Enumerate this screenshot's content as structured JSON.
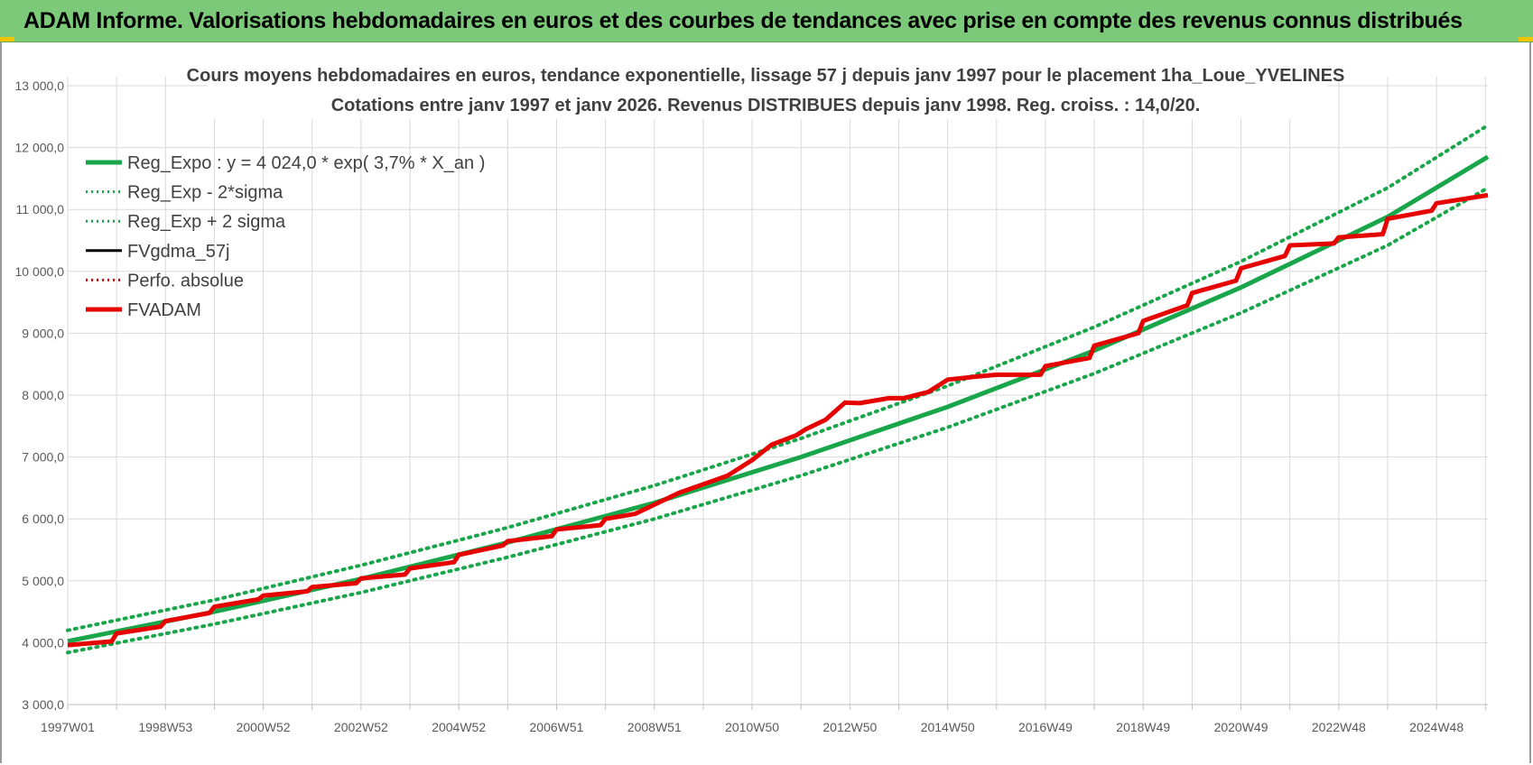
{
  "header": {
    "title": "ADAM Informe. Valorisations hebdomadaires en euros et des courbes de tendances avec prise en compte des revenus connus distribués",
    "background": "#7dc97a"
  },
  "chart_data": {
    "type": "line",
    "title_line1": "Cours moyens hebdomadaires en euros, tendance exponentielle, lissage 57 j depuis janv 1997  pour le  placement 1ha_Loue_YVELINES",
    "title_line2": "Cotations entre janv 1997 et janv 2026. Revenus DISTRIBUES depuis janv 1998.  Reg. croiss. : 14,0/20.",
    "ylim": [
      3000,
      13000
    ],
    "xlim": [
      1997.0,
      2026.05
    ],
    "y_ticks": [
      "3 000,0",
      "4 000,0",
      "5 000,0",
      "6 000,0",
      "7 000,0",
      "8 000,0",
      "9 000,0",
      "10 000,0",
      "11 000,0",
      "12 000,0",
      "13 000,0"
    ],
    "x_ticks": [
      "1997W01",
      "1998W53",
      "2000W52",
      "2002W52",
      "2004W52",
      "2006W51",
      "2008W51",
      "2010W50",
      "2012W50",
      "2014W50",
      "2016W49",
      "2018W49",
      "2020W49",
      "2022W48",
      "2024W48"
    ],
    "legend": [
      {
        "label": "Reg_Expo : y = 4 024,0 * exp( 3,7% *  X_an )",
        "color": "#19a64b",
        "style": "solid"
      },
      {
        "label": "Reg_Exp - 2*sigma",
        "color": "#19a64b",
        "style": "dotted"
      },
      {
        "label": "Reg_Exp + 2 sigma",
        "color": "#19a64b",
        "style": "dotted"
      },
      {
        "label": "FVgdma_57j",
        "color": "#000000",
        "style": "solid"
      },
      {
        "label": "Perfo. absolue",
        "color": "#e00000",
        "style": "dotted"
      },
      {
        "label": "FVADAM",
        "color": "#e60000",
        "style": "solid"
      }
    ],
    "series": [
      {
        "name": "Reg_Expo",
        "x": [
          1997.0,
          2000.0,
          2003.0,
          2006.0,
          2009.0,
          2012.0,
          2015.0,
          2018.0,
          2021.0,
          2024.0,
          2026.05
        ],
        "values": [
          4024,
          4500,
          5030,
          5620,
          6260,
          7000,
          7810,
          8720,
          9740,
          10880,
          11850
        ]
      },
      {
        "name": "Reg_Exp - 2*sigma",
        "x": [
          1997.0,
          2000.0,
          2003.0,
          2006.0,
          2009.0,
          2012.0,
          2015.0,
          2018.0,
          2021.0,
          2024.0,
          2026.05
        ],
        "values": [
          3840,
          4300,
          4810,
          5380,
          6000,
          6700,
          7480,
          8350,
          9330,
          10420,
          11350
        ]
      },
      {
        "name": "Reg_Exp + 2 sigma",
        "x": [
          1997.0,
          2000.0,
          2003.0,
          2006.0,
          2009.0,
          2012.0,
          2015.0,
          2018.0,
          2021.0,
          2024.0,
          2026.05
        ],
        "values": [
          4200,
          4690,
          5250,
          5860,
          6540,
          7300,
          8150,
          9100,
          10160,
          11350,
          12360
        ]
      },
      {
        "name": "FVADAM",
        "x": [
          1997.0,
          1997.9,
          1998.0,
          1998.9,
          1999.0,
          1999.9,
          2000.0,
          2000.9,
          2001.0,
          2001.9,
          2002.0,
          2002.9,
          2003.0,
          2003.9,
          2004.0,
          2004.9,
          2005.0,
          2005.9,
          2006.0,
          2006.9,
          2007.0,
          2007.9,
          2008.0,
          2008.6,
          2009.0,
          2009.5,
          2010.0,
          2010.5,
          2011.0,
          2011.4,
          2011.9,
          2012.1,
          2012.5,
          2012.9,
          2013.2,
          2013.8,
          2014.1,
          2014.6,
          2015.0,
          2015.6,
          2016.0,
          2016.9,
          2017.0,
          2017.9,
          2018.0,
          2018.9,
          2019.0,
          2019.9,
          2020.0,
          2020.9,
          2021.0,
          2021.9,
          2022.0,
          2022.9,
          2023.0,
          2023.9,
          2024.0,
          2024.9,
          2025.0,
          2026.05
        ],
        "values": [
          3960,
          4020,
          4150,
          4260,
          4350,
          4480,
          4580,
          4700,
          4760,
          4830,
          4900,
          4960,
          5040,
          5100,
          5200,
          5300,
          5420,
          5570,
          5640,
          5720,
          5830,
          5900,
          6000,
          6080,
          6230,
          6420,
          6560,
          6700,
          6950,
          7200,
          7350,
          7450,
          7600,
          7880,
          7870,
          7950,
          7950,
          8050,
          8250,
          8300,
          8330,
          8330,
          8470,
          8600,
          8800,
          9000,
          9200,
          9450,
          9650,
          9850,
          10050,
          10250,
          10420,
          10450,
          10550,
          10600,
          10850,
          10980,
          11100,
          11230
        ]
      }
    ]
  }
}
